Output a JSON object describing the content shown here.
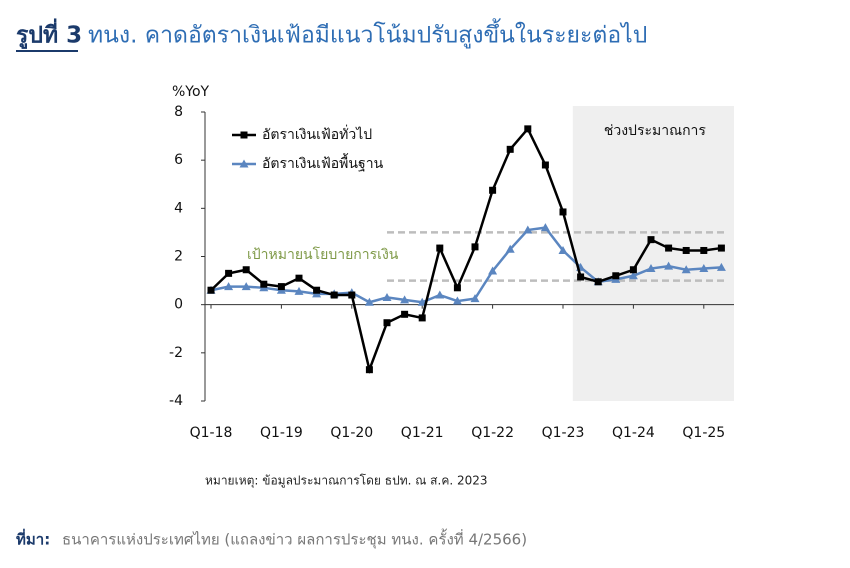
{
  "figure_label": "รูปที่ 3",
  "title": "ทนง. คาดอัตราเงินเฟ้อมีแนวโน้มปรับสูงขึ้นในระยะต่อไป",
  "note": "หมายเหตุ: ข้อมูลประมาณการโดย ธปท. ณ ส.ค. 2023",
  "source_label": "ที่มา:",
  "source": "ธนาคารแห่งประเทศไทย (แถลงข่าว ผลการประชุม ทนง. ครั้งที่ 4/2566)",
  "chart_data": {
    "type": "line",
    "ylabel": "%YoY",
    "categories": [
      "Q1-18",
      null,
      null,
      null,
      "Q1-19",
      null,
      null,
      null,
      "Q1-20",
      null,
      null,
      null,
      "Q1-21",
      null,
      null,
      null,
      "Q1-22",
      null,
      null,
      null,
      "Q1-23",
      null,
      null,
      null,
      "Q1-24",
      null,
      null,
      null,
      "Q1-25",
      null
    ],
    "series": [
      {
        "name": "อัตราเงินเฟ้อทั่วไป",
        "color": "#000000",
        "marker": "square",
        "values": [
          0.6,
          1.3,
          1.45,
          0.85,
          0.75,
          1.1,
          0.6,
          0.4,
          0.4,
          -2.7,
          -0.75,
          -0.4,
          -0.55,
          2.35,
          0.7,
          2.4,
          4.75,
          6.45,
          7.3,
          5.8,
          3.85,
          1.15,
          0.95,
          1.2,
          1.45,
          2.7,
          2.35,
          2.25,
          2.25,
          2.35
        ]
      },
      {
        "name": "อัตราเงินเฟ้อพื้นฐาน",
        "color": "#5b86c0",
        "marker": "triangle",
        "values": [
          0.6,
          0.75,
          0.75,
          0.7,
          0.6,
          0.55,
          0.45,
          0.45,
          0.5,
          0.1,
          0.3,
          0.2,
          0.1,
          0.4,
          0.15,
          0.25,
          1.4,
          2.3,
          3.1,
          3.2,
          2.25,
          1.55,
          0.95,
          1.05,
          1.2,
          1.5,
          1.6,
          1.45,
          1.5,
          1.55
        ]
      }
    ],
    "ylim": [
      -4,
      8
    ],
    "yticks": [
      -4,
      -2,
      0,
      2,
      4,
      6,
      8
    ],
    "target_band": {
      "label": "เป้าหมายนโยบายการเงิน",
      "values": [
        1,
        3
      ],
      "start_index": 10
    },
    "forecast": {
      "label": "ช่วงประมาณการ",
      "start_index": 21
    }
  }
}
